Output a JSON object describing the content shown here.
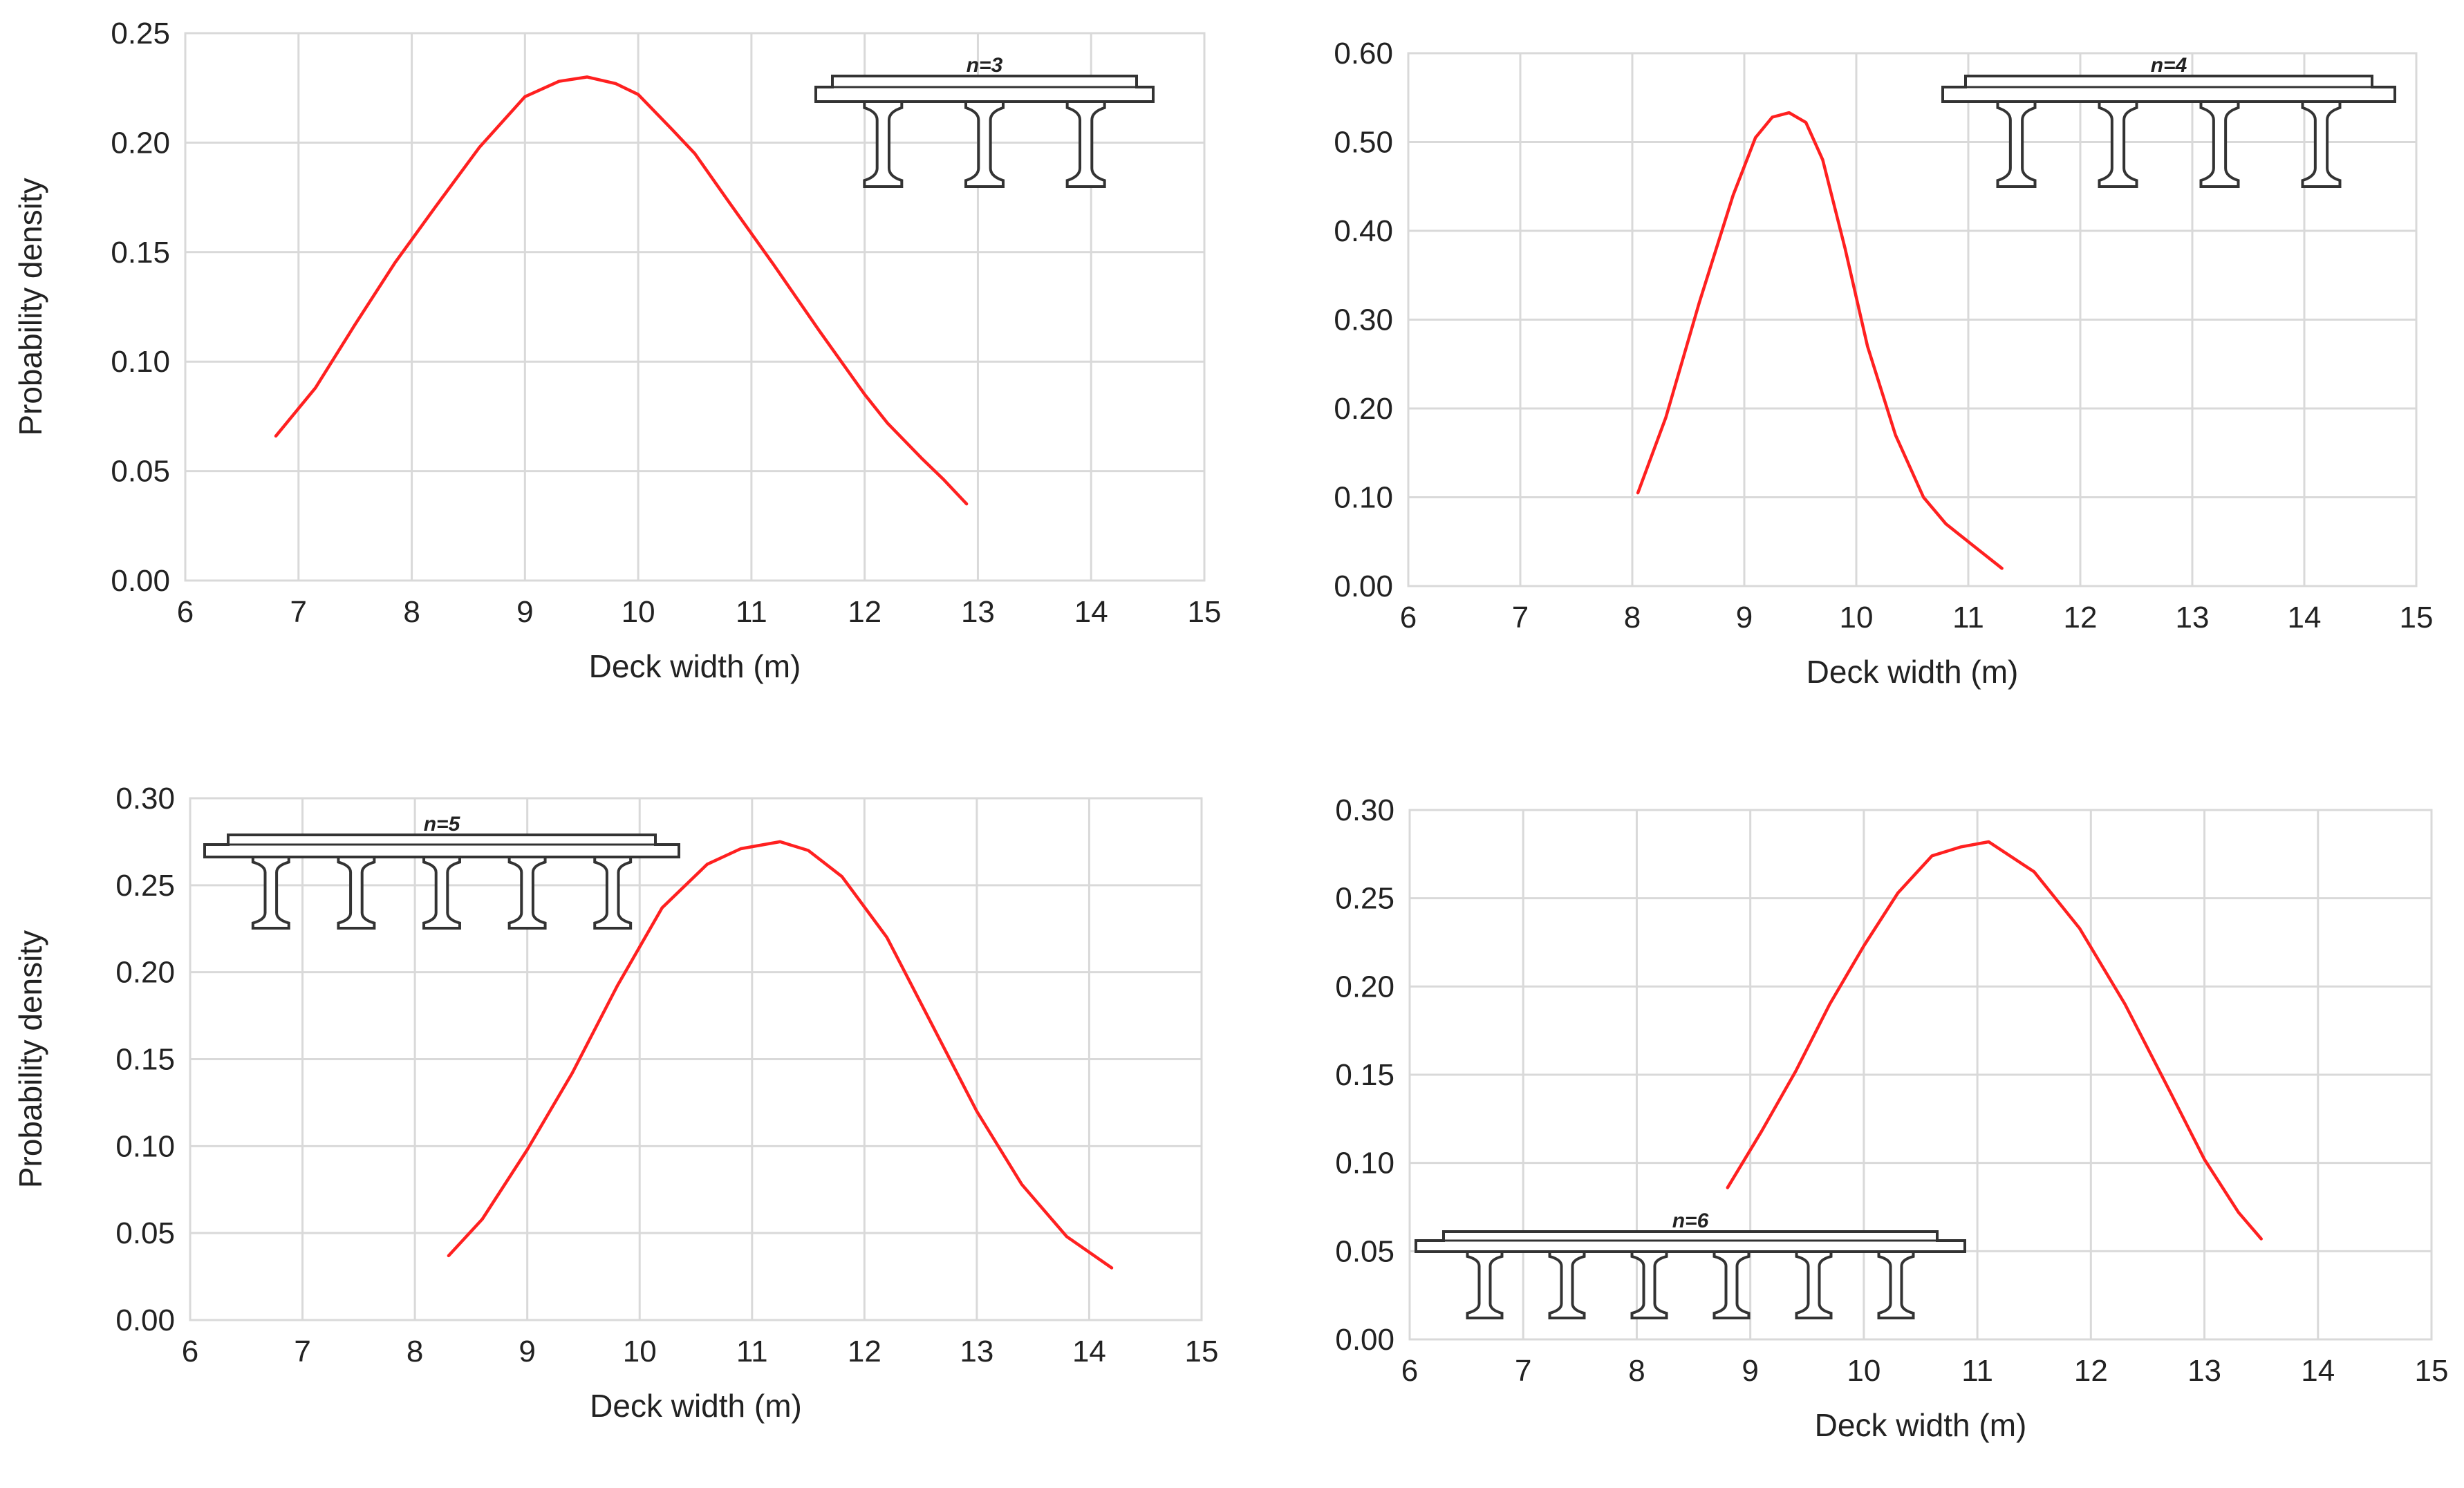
{
  "chart_data": [
    {
      "type": "line",
      "x": [
        6.8,
        7.15,
        7.5,
        7.85,
        8.2,
        8.6,
        9.0,
        9.3,
        9.55,
        9.8,
        10.0,
        10.3,
        10.5,
        10.8,
        11.2,
        11.6,
        12.0,
        12.2,
        12.5,
        12.7,
        12.9
      ],
      "series": [
        {
          "values": [
            0.066,
            0.088,
            0.117,
            0.145,
            0.17,
            0.198,
            0.221,
            0.228,
            0.23,
            0.227,
            0.222,
            0.206,
            0.195,
            0.173,
            0.144,
            0.114,
            0.085,
            0.072,
            0.056,
            0.046,
            0.035
          ]
        }
      ],
      "xlabel": "Deck width (m)",
      "ylabel": "Probability density",
      "xlim": [
        6,
        15
      ],
      "ylim": [
        0,
        0.25
      ],
      "xticks": [
        "6",
        "7",
        "8",
        "9",
        "10",
        "11",
        "12",
        "13",
        "14",
        "15"
      ],
      "yticks": [
        "0.00",
        "0.05",
        "0.10",
        "0.15",
        "0.20",
        "0.25"
      ],
      "grid": true,
      "line_color": "#ff2020",
      "inset_label": "n=3",
      "girders": 3
    },
    {
      "type": "line",
      "x": [
        8.05,
        8.3,
        8.6,
        8.9,
        9.1,
        9.25,
        9.4,
        9.55,
        9.7,
        9.9,
        10.1,
        10.35,
        10.6,
        10.8,
        11.05,
        11.3
      ],
      "series": [
        {
          "values": [
            0.105,
            0.19,
            0.32,
            0.44,
            0.505,
            0.528,
            0.533,
            0.522,
            0.48,
            0.38,
            0.27,
            0.17,
            0.1,
            0.07,
            0.045,
            0.02
          ]
        }
      ],
      "xlabel": "Deck width (m)",
      "ylabel": "",
      "xlim": [
        6,
        15
      ],
      "ylim": [
        0,
        0.6
      ],
      "xticks": [
        "6",
        "7",
        "8",
        "9",
        "10",
        "11",
        "12",
        "13",
        "14",
        "15"
      ],
      "yticks": [
        "0.00",
        "0.10",
        "0.20",
        "0.30",
        "0.40",
        "0.50",
        "0.60"
      ],
      "grid": true,
      "line_color": "#ff2020",
      "inset_label": "n=4",
      "girders": 4
    },
    {
      "type": "line",
      "x": [
        8.3,
        8.6,
        9.0,
        9.4,
        9.8,
        10.2,
        10.6,
        10.9,
        11.25,
        11.5,
        11.8,
        12.2,
        12.6,
        13.0,
        13.4,
        13.8,
        14.2
      ],
      "series": [
        {
          "values": [
            0.037,
            0.058,
            0.098,
            0.142,
            0.192,
            0.237,
            0.262,
            0.271,
            0.275,
            0.27,
            0.255,
            0.22,
            0.17,
            0.12,
            0.078,
            0.048,
            0.03
          ]
        }
      ],
      "xlabel": "Deck width (m)",
      "ylabel": "Probability density",
      "xlim": [
        6,
        15
      ],
      "ylim": [
        0,
        0.3
      ],
      "xticks": [
        "6",
        "7",
        "8",
        "9",
        "10",
        "11",
        "12",
        "13",
        "14",
        "15"
      ],
      "yticks": [
        "0.00",
        "0.05",
        "0.10",
        "0.15",
        "0.20",
        "0.25",
        "0.30"
      ],
      "grid": true,
      "line_color": "#ff2020",
      "inset_label": "n=5",
      "girders": 5
    },
    {
      "type": "line",
      "x": [
        8.8,
        9.1,
        9.4,
        9.7,
        10.0,
        10.3,
        10.6,
        10.85,
        11.1,
        11.5,
        11.9,
        12.3,
        12.7,
        13.0,
        13.3,
        13.5
      ],
      "series": [
        {
          "values": [
            0.086,
            0.118,
            0.152,
            0.19,
            0.223,
            0.253,
            0.274,
            0.279,
            0.282,
            0.265,
            0.233,
            0.19,
            0.14,
            0.102,
            0.072,
            0.057
          ]
        }
      ],
      "xlabel": "Deck width (m)",
      "ylabel": "",
      "xlim": [
        6,
        15
      ],
      "ylim": [
        0,
        0.3
      ],
      "xticks": [
        "6",
        "7",
        "8",
        "9",
        "10",
        "11",
        "12",
        "13",
        "14",
        "15"
      ],
      "yticks": [
        "0.00",
        "0.05",
        "0.10",
        "0.15",
        "0.20",
        "0.25",
        "0.30"
      ],
      "grid": true,
      "line_color": "#ff2020",
      "inset_label": "n=6",
      "girders": 6
    }
  ]
}
